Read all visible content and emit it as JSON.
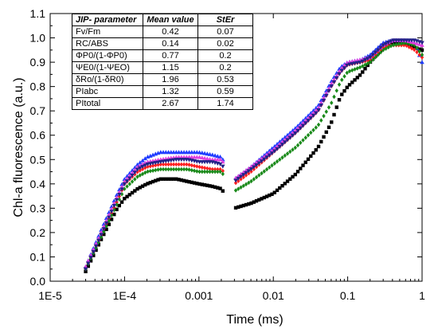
{
  "chart_data": {
    "type": "scatter",
    "title": "",
    "xlabel": "Time (ms)",
    "ylabel": "Chl-a fluorescence (a.u.)",
    "xscale": "log",
    "xlim": [
      1e-05,
      1
    ],
    "ylim": [
      0.0,
      1.1
    ],
    "x_ticks": [
      1e-05,
      0.0001,
      0.001,
      0.01,
      0.1,
      1
    ],
    "x_tick_labels": [
      "1E-5",
      "1E-4",
      "0.001",
      "0.01",
      "0.1",
      "1"
    ],
    "y_ticks": [
      0.0,
      0.1,
      0.2,
      0.3,
      0.4,
      0.5,
      0.6,
      0.7,
      0.8,
      0.9,
      1.0,
      1.1
    ],
    "y_tick_labels": [
      "0.0",
      "0.1",
      "0.2",
      "0.3",
      "0.4",
      "0.5",
      "0.6",
      "0.7",
      "0.8",
      "0.9",
      "1.0",
      "1.1"
    ],
    "grid": false,
    "series": [
      {
        "marker": "square",
        "color": "#000000",
        "points": [
          [
            3e-05,
            0.04
          ],
          [
            5e-05,
            0.18
          ],
          [
            8e-05,
            0.3
          ],
          [
            0.0001,
            0.34
          ],
          [
            0.00015,
            0.38
          ],
          [
            0.0002,
            0.4
          ],
          [
            0.0003,
            0.42
          ],
          [
            0.0005,
            0.42
          ],
          [
            0.0007,
            0.41
          ],
          [
            0.001,
            0.4
          ],
          [
            0.0015,
            0.39
          ],
          [
            0.002,
            0.38
          ],
          [
            0.003,
            0.3
          ],
          [
            0.005,
            0.32
          ],
          [
            0.01,
            0.36
          ],
          [
            0.02,
            0.44
          ],
          [
            0.04,
            0.55
          ],
          [
            0.06,
            0.65
          ],
          [
            0.08,
            0.76
          ],
          [
            0.1,
            0.8
          ],
          [
            0.15,
            0.85
          ],
          [
            0.2,
            0.9
          ],
          [
            0.3,
            0.96
          ],
          [
            0.4,
            0.98
          ],
          [
            0.6,
            0.98
          ],
          [
            0.8,
            0.96
          ],
          [
            1.0,
            0.95
          ]
        ]
      },
      {
        "marker": "triangle",
        "color": "#1f3cff",
        "points": [
          [
            3e-05,
            0.06
          ],
          [
            5e-05,
            0.22
          ],
          [
            8e-05,
            0.36
          ],
          [
            0.0001,
            0.42
          ],
          [
            0.00015,
            0.48
          ],
          [
            0.0002,
            0.51
          ],
          [
            0.0003,
            0.53
          ],
          [
            0.0005,
            0.53
          ],
          [
            0.0007,
            0.53
          ],
          [
            0.001,
            0.53
          ],
          [
            0.0015,
            0.52
          ],
          [
            0.002,
            0.51
          ],
          [
            0.003,
            0.42
          ],
          [
            0.005,
            0.47
          ],
          [
            0.01,
            0.55
          ],
          [
            0.02,
            0.63
          ],
          [
            0.04,
            0.72
          ],
          [
            0.06,
            0.82
          ],
          [
            0.08,
            0.88
          ],
          [
            0.1,
            0.9
          ],
          [
            0.15,
            0.91
          ],
          [
            0.2,
            0.93
          ],
          [
            0.3,
            0.98
          ],
          [
            0.4,
            0.99
          ],
          [
            0.6,
            0.99
          ],
          [
            0.8,
            0.98
          ],
          [
            1.0,
            0.9
          ]
        ]
      },
      {
        "marker": "diamond",
        "color": "#ff2020",
        "points": [
          [
            3e-05,
            0.05
          ],
          [
            5e-05,
            0.2
          ],
          [
            8e-05,
            0.33
          ],
          [
            0.0001,
            0.4
          ],
          [
            0.00015,
            0.45
          ],
          [
            0.0002,
            0.47
          ],
          [
            0.0003,
            0.48
          ],
          [
            0.0005,
            0.48
          ],
          [
            0.0007,
            0.48
          ],
          [
            0.001,
            0.47
          ],
          [
            0.0015,
            0.46
          ],
          [
            0.002,
            0.46
          ],
          [
            0.003,
            0.4
          ],
          [
            0.005,
            0.45
          ],
          [
            0.01,
            0.53
          ],
          [
            0.02,
            0.61
          ],
          [
            0.04,
            0.7
          ],
          [
            0.06,
            0.8
          ],
          [
            0.08,
            0.86
          ],
          [
            0.1,
            0.89
          ],
          [
            0.15,
            0.9
          ],
          [
            0.2,
            0.91
          ],
          [
            0.3,
            0.96
          ],
          [
            0.4,
            0.97
          ],
          [
            0.6,
            0.97
          ],
          [
            0.8,
            0.95
          ],
          [
            1.0,
            0.92
          ]
        ]
      },
      {
        "marker": "diamond",
        "color": "#1a8a1a",
        "points": [
          [
            3e-05,
            0.05
          ],
          [
            5e-05,
            0.19
          ],
          [
            8e-05,
            0.32
          ],
          [
            0.0001,
            0.38
          ],
          [
            0.00015,
            0.43
          ],
          [
            0.0002,
            0.45
          ],
          [
            0.0003,
            0.46
          ],
          [
            0.0005,
            0.46
          ],
          [
            0.0007,
            0.46
          ],
          [
            0.001,
            0.45
          ],
          [
            0.0015,
            0.45
          ],
          [
            0.002,
            0.45
          ],
          [
            0.003,
            0.37
          ],
          [
            0.005,
            0.41
          ],
          [
            0.01,
            0.48
          ],
          [
            0.02,
            0.55
          ],
          [
            0.04,
            0.64
          ],
          [
            0.06,
            0.73
          ],
          [
            0.08,
            0.82
          ],
          [
            0.1,
            0.86
          ],
          [
            0.15,
            0.88
          ],
          [
            0.2,
            0.9
          ],
          [
            0.3,
            0.95
          ],
          [
            0.4,
            0.97
          ],
          [
            0.6,
            0.98
          ],
          [
            0.8,
            0.97
          ],
          [
            1.0,
            0.93
          ]
        ]
      },
      {
        "marker": "triangle",
        "color": "#e040e0",
        "points": [
          [
            3e-05,
            0.06
          ],
          [
            5e-05,
            0.21
          ],
          [
            8e-05,
            0.35
          ],
          [
            0.0001,
            0.41
          ],
          [
            0.00015,
            0.47
          ],
          [
            0.0002,
            0.49
          ],
          [
            0.0003,
            0.5
          ],
          [
            0.0005,
            0.51
          ],
          [
            0.0007,
            0.51
          ],
          [
            0.001,
            0.51
          ],
          [
            0.0015,
            0.5
          ],
          [
            0.002,
            0.5
          ],
          [
            0.003,
            0.42
          ],
          [
            0.005,
            0.47
          ],
          [
            0.01,
            0.54
          ],
          [
            0.02,
            0.62
          ],
          [
            0.04,
            0.71
          ],
          [
            0.06,
            0.81
          ],
          [
            0.08,
            0.87
          ],
          [
            0.1,
            0.9
          ],
          [
            0.15,
            0.91
          ],
          [
            0.2,
            0.92
          ],
          [
            0.3,
            0.97
          ],
          [
            0.4,
            0.99
          ],
          [
            0.6,
            0.99
          ],
          [
            0.8,
            0.98
          ],
          [
            1.0,
            0.97
          ]
        ]
      },
      {
        "marker": "triangle-down",
        "color": "#222288",
        "points": [
          [
            3e-05,
            0.05
          ],
          [
            5e-05,
            0.2
          ],
          [
            8e-05,
            0.34
          ],
          [
            0.0001,
            0.4
          ],
          [
            0.00015,
            0.46
          ],
          [
            0.0002,
            0.48
          ],
          [
            0.0003,
            0.49
          ],
          [
            0.0005,
            0.5
          ],
          [
            0.0007,
            0.5
          ],
          [
            0.001,
            0.49
          ],
          [
            0.0015,
            0.49
          ],
          [
            0.002,
            0.48
          ],
          [
            0.003,
            0.41
          ],
          [
            0.005,
            0.46
          ],
          [
            0.01,
            0.53
          ],
          [
            0.02,
            0.61
          ],
          [
            0.04,
            0.7
          ],
          [
            0.06,
            0.8
          ],
          [
            0.08,
            0.86
          ],
          [
            0.1,
            0.89
          ],
          [
            0.15,
            0.9
          ],
          [
            0.2,
            0.92
          ],
          [
            0.3,
            0.97
          ],
          [
            0.4,
            0.99
          ],
          [
            0.6,
            0.99
          ],
          [
            0.8,
            0.99
          ],
          [
            1.0,
            0.98
          ]
        ]
      }
    ]
  },
  "table": {
    "headers": [
      "JIP- parameter",
      "Mean value",
      "StEr"
    ],
    "rows": [
      [
        "Fv/Fm",
        "0.42",
        "0.07"
      ],
      [
        "RC/ABS",
        "0.14",
        "0.02"
      ],
      [
        "ΦP0/(1-ΦP0)",
        "0.77",
        "0.2"
      ],
      [
        "ΨE0/(1-ΨEO)",
        "1.15",
        "0.2"
      ],
      [
        "δRo/(1-δR0)",
        "1.96",
        "0.53"
      ],
      [
        "PIabc",
        "1.32",
        "0.59"
      ],
      [
        "PItotal",
        "2.67",
        "1.74"
      ]
    ]
  }
}
